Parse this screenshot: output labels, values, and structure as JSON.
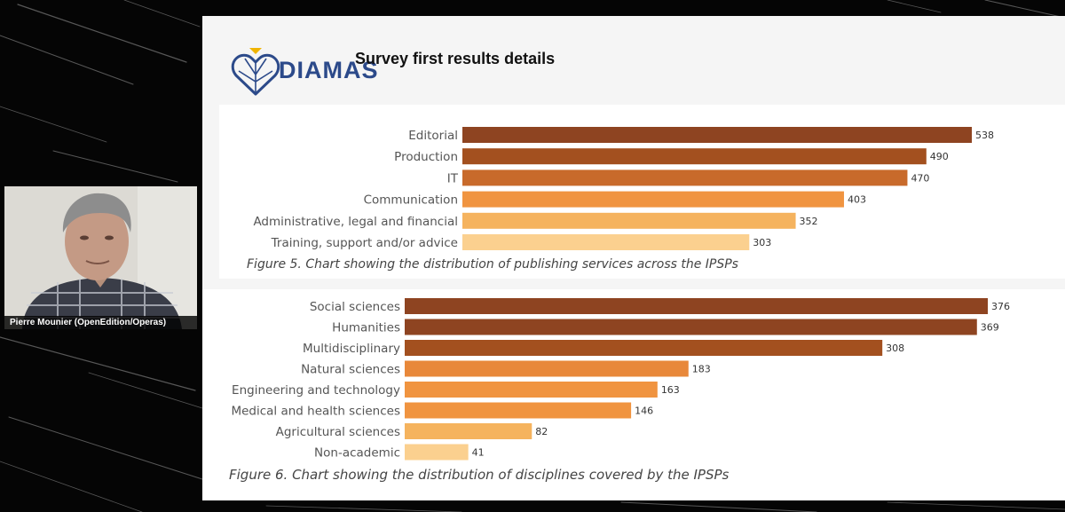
{
  "slide": {
    "title": "Survey first results details",
    "logo_text": "DIAMAS",
    "logo_icon": "diamas-heart-logo-icon"
  },
  "webcam": {
    "participant_name": "Pierre Mounier (OpenEdition/Operas)",
    "video": "participant-video"
  },
  "colors": {
    "page_background": "#050505",
    "slide_background": "#f5f5f5",
    "logo_blue": "#2c4a8a",
    "logo_gold": "#f0b400",
    "bar_shades": [
      "#8e4421",
      "#a3501f",
      "#c86a2b",
      "#f09440",
      "#f5b35e",
      "#fbd08f"
    ]
  },
  "chart_data": [
    {
      "type": "bar",
      "orientation": "horizontal",
      "categories": [
        "Editorial",
        "Production",
        "IT",
        "Communication",
        "Administrative, legal and financial",
        "Training, support and/or advice"
      ],
      "values": [
        538,
        490,
        470,
        403,
        352,
        303
      ],
      "colors": [
        "#8e4421",
        "#a3501f",
        "#c86a2b",
        "#f09440",
        "#f5b35e",
        "#fbd08f"
      ],
      "caption": "Figure 5. Chart showing the distribution of publishing services across the IPSPs",
      "data_labels": true,
      "grid": false
    },
    {
      "type": "bar",
      "orientation": "horizontal",
      "categories": [
        "Social sciences",
        "Humanities",
        "Multidisciplinary",
        "Natural sciences",
        "Engineering and technology",
        "Medical and health sciences",
        "Agricultural sciences",
        "Non-academic"
      ],
      "values": [
        376,
        369,
        308,
        183,
        163,
        146,
        82,
        41
      ],
      "colors": [
        "#8e4421",
        "#8e4421",
        "#a3501f",
        "#e8883a",
        "#f09440",
        "#f09440",
        "#f5b35e",
        "#fbd08f"
      ],
      "caption": "Figure 6. Chart showing the distribution of disciplines covered by the IPSPs",
      "data_labels": true,
      "grid": false
    }
  ]
}
